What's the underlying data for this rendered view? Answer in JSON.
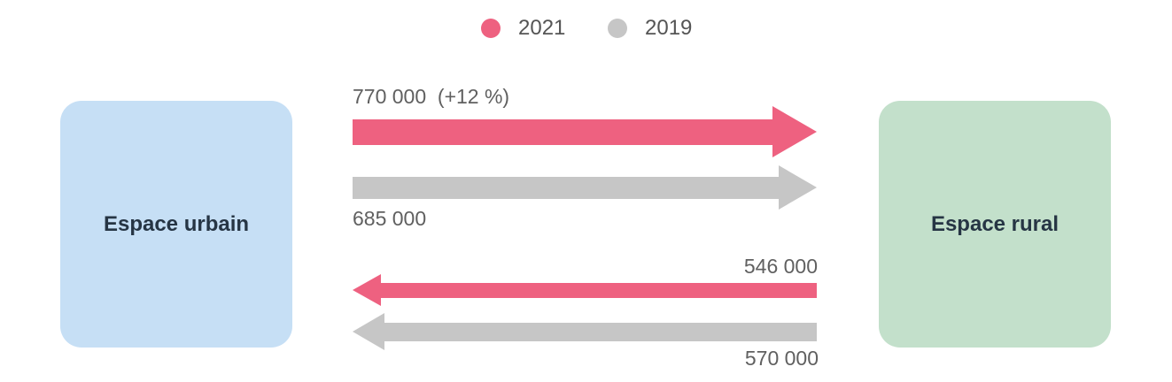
{
  "colors": {
    "series_2021": "#ee6180",
    "series_2019": "#c6c6c6",
    "urban_box": "#c6dff5",
    "rural_box": "#c3e0cb"
  },
  "legend": [
    {
      "label": "2021"
    },
    {
      "label": "2019"
    }
  ],
  "boxes": {
    "urban": "Espace urbain",
    "rural": "Espace rural"
  },
  "flows": {
    "urban_to_rural": {
      "v2021": 770000,
      "v2021_label": "770 000",
      "v2021_change": "(+12 %)",
      "v2019": 685000,
      "v2019_label": "685 000"
    },
    "rural_to_urban": {
      "v2021": 546000,
      "v2021_label": "546 000",
      "v2019": 570000,
      "v2019_label": "570 000"
    }
  }
}
